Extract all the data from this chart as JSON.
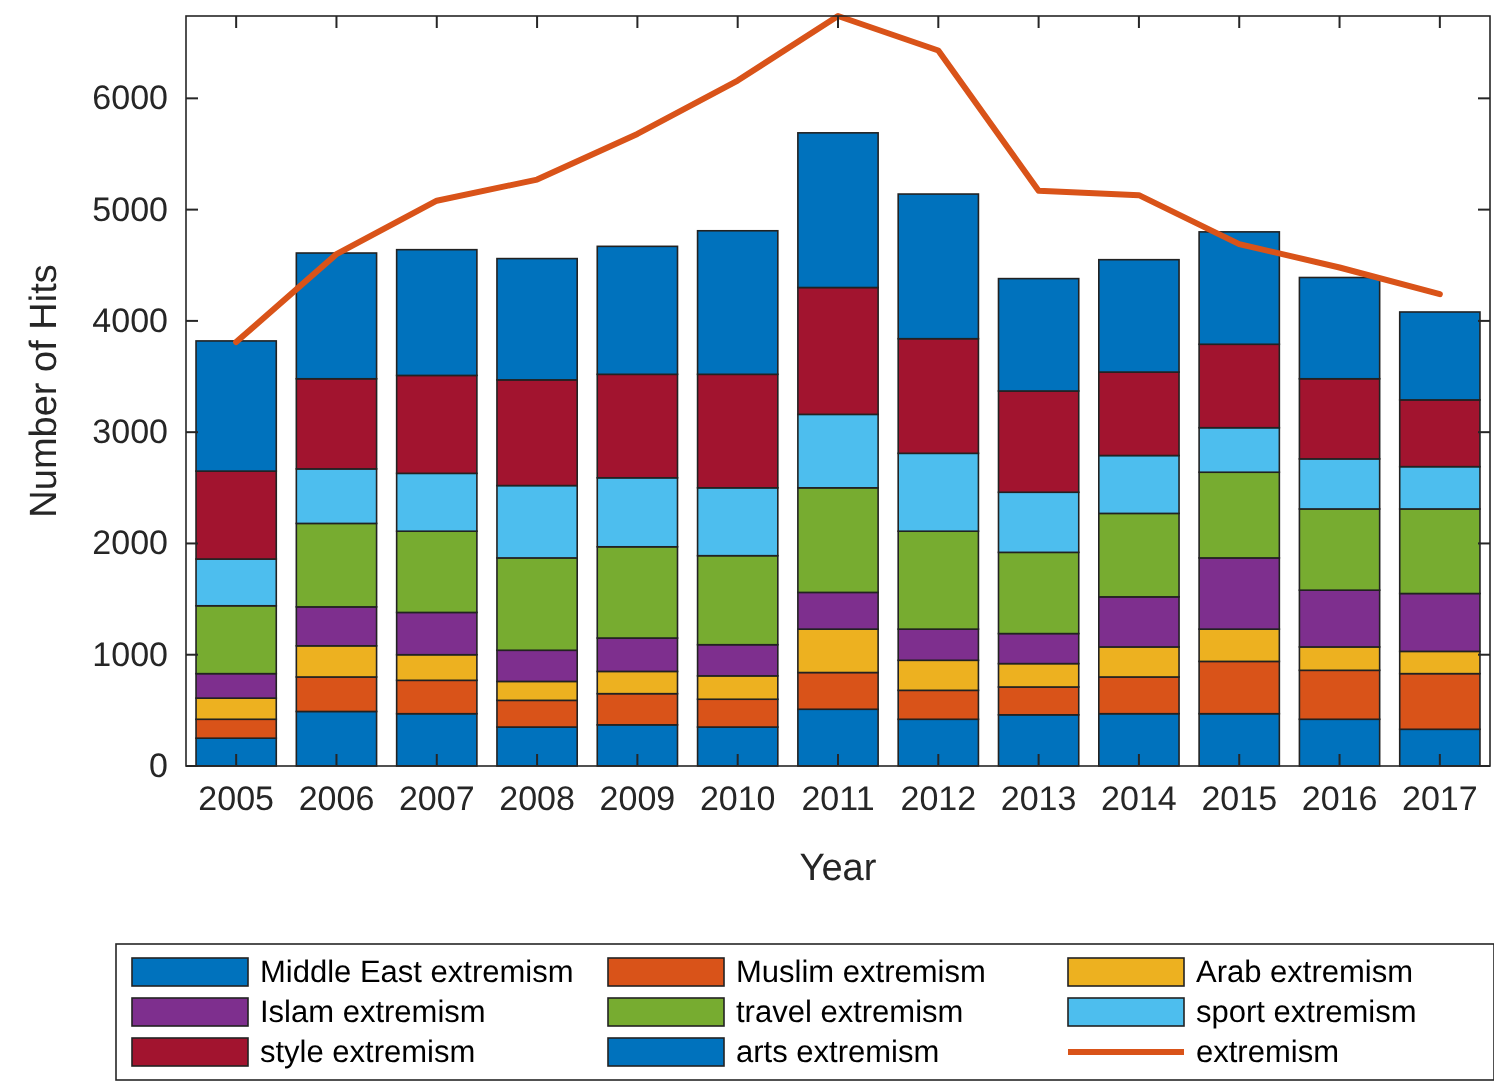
{
  "chart_data": {
    "type": "bar",
    "stacked": true,
    "xlabel": "Year",
    "ylabel": "Number of Hits",
    "categories": [
      "2005",
      "2006",
      "2007",
      "2008",
      "2009",
      "2010",
      "2011",
      "2012",
      "2013",
      "2014",
      "2015",
      "2016",
      "2017"
    ],
    "ylim": [
      0,
      6740
    ],
    "yticks": [
      0,
      1000,
      2000,
      3000,
      4000,
      5000,
      6000
    ],
    "grid": false,
    "legend": "bottom",
    "series": [
      {
        "name": "Middle East extremism",
        "color": "#0072bd",
        "values": [
          250,
          490,
          470,
          350,
          370,
          350,
          510,
          420,
          460,
          470,
          470,
          420,
          330
        ]
      },
      {
        "name": "Muslim extremism",
        "color": "#d95319",
        "values": [
          170,
          310,
          300,
          240,
          280,
          250,
          330,
          260,
          250,
          330,
          470,
          440,
          500
        ]
      },
      {
        "name": "Arab extremism",
        "color": "#edb120",
        "values": [
          190,
          280,
          230,
          170,
          200,
          210,
          390,
          270,
          210,
          270,
          290,
          210,
          200
        ]
      },
      {
        "name": "Islam extremism",
        "color": "#7e2f8e",
        "values": [
          220,
          350,
          380,
          280,
          300,
          280,
          330,
          280,
          270,
          450,
          640,
          510,
          520
        ]
      },
      {
        "name": "travel extremism",
        "color": "#77ac30",
        "values": [
          610,
          750,
          730,
          830,
          820,
          800,
          940,
          880,
          730,
          750,
          770,
          730,
          760
        ]
      },
      {
        "name": "sport extremism",
        "color": "#4dbeee",
        "values": [
          420,
          490,
          520,
          650,
          620,
          610,
          660,
          700,
          540,
          520,
          400,
          450,
          380
        ]
      },
      {
        "name": "style extremism",
        "color": "#a2142f",
        "values": [
          790,
          810,
          880,
          950,
          930,
          1020,
          1140,
          1030,
          910,
          750,
          750,
          720,
          600
        ]
      },
      {
        "name": "arts extremism",
        "color": "#0072bd",
        "values": [
          1170,
          1130,
          1130,
          1090,
          1150,
          1290,
          1390,
          1300,
          1010,
          1010,
          1010,
          910,
          790
        ]
      },
      {
        "name": "extremism",
        "type": "line",
        "color": "#d95319",
        "values": [
          3810,
          4600,
          5080,
          5270,
          5680,
          6160,
          6740,
          6430,
          5170,
          5130,
          4690,
          4480,
          4240
        ]
      }
    ]
  }
}
